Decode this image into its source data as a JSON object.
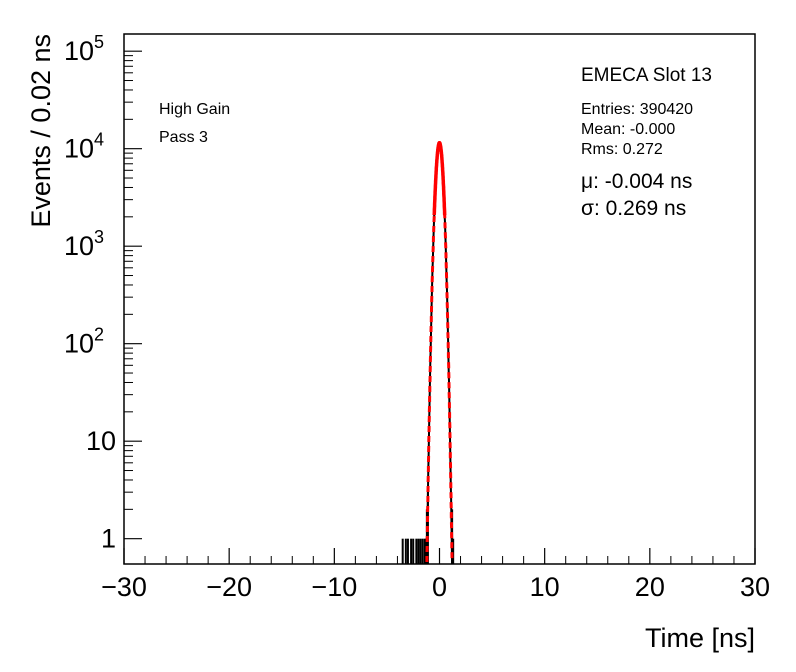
{
  "chart_data": {
    "type": "histogram",
    "title": "EMECA Slot 13",
    "xlabel": "Time [ns]",
    "ylabel": "Events / 0.02 ns",
    "xlim": [
      -30,
      30
    ],
    "ylim": [
      0.55,
      150000
    ],
    "log_y": true,
    "grid": false,
    "x_ticks": [
      {
        "value": -30,
        "label": "−30"
      },
      {
        "value": -20,
        "label": "−20"
      },
      {
        "value": -10,
        "label": "−10"
      },
      {
        "value": 0,
        "label": "0"
      },
      {
        "value": 10,
        "label": "10"
      },
      {
        "value": 20,
        "label": "20"
      },
      {
        "value": 30,
        "label": "30"
      }
    ],
    "y_ticks": [
      {
        "value": 1,
        "base": "1",
        "exp": ""
      },
      {
        "value": 10,
        "base": "10",
        "exp": ""
      },
      {
        "value": 100,
        "base": "10",
        "exp": "2"
      },
      {
        "value": 1000,
        "base": "10",
        "exp": "3"
      },
      {
        "value": 10000,
        "base": "10",
        "exp": "4"
      },
      {
        "value": 100000,
        "base": "10",
        "exp": "5"
      }
    ],
    "annotations": {
      "left": [
        "High Gain",
        "Pass 3"
      ],
      "stats": [
        "Entries: 390420",
        "Mean: -0.000",
        "Rms: 0.272"
      ],
      "fit": [
        "μ: -0.004 ns",
        "σ: 0.269 ns"
      ]
    },
    "fit": {
      "type": "gaussian",
      "amplitude": 11500,
      "mean": -0.004,
      "sigma": 0.269,
      "color": "#ff0000"
    },
    "histogram": {
      "color": "#000000",
      "tail_bins": [
        {
          "x": -3.5,
          "y": 1
        },
        {
          "x": -3.2,
          "y": 1
        },
        {
          "x": -3.0,
          "y": 1
        },
        {
          "x": -2.7,
          "y": 1
        },
        {
          "x": -2.5,
          "y": 1
        },
        {
          "x": -2.2,
          "y": 1
        },
        {
          "x": -2.0,
          "y": 1
        },
        {
          "x": -1.8,
          "y": 1
        },
        {
          "x": -1.6,
          "y": 1
        },
        {
          "x": -1.4,
          "y": 1
        },
        {
          "x": -1.3,
          "y": 1
        },
        {
          "x": -1.2,
          "y": 2
        },
        {
          "x": -1.1,
          "y": 3
        },
        {
          "x": 1.2,
          "y": 2
        },
        {
          "x": 1.3,
          "y": 1
        }
      ]
    }
  }
}
